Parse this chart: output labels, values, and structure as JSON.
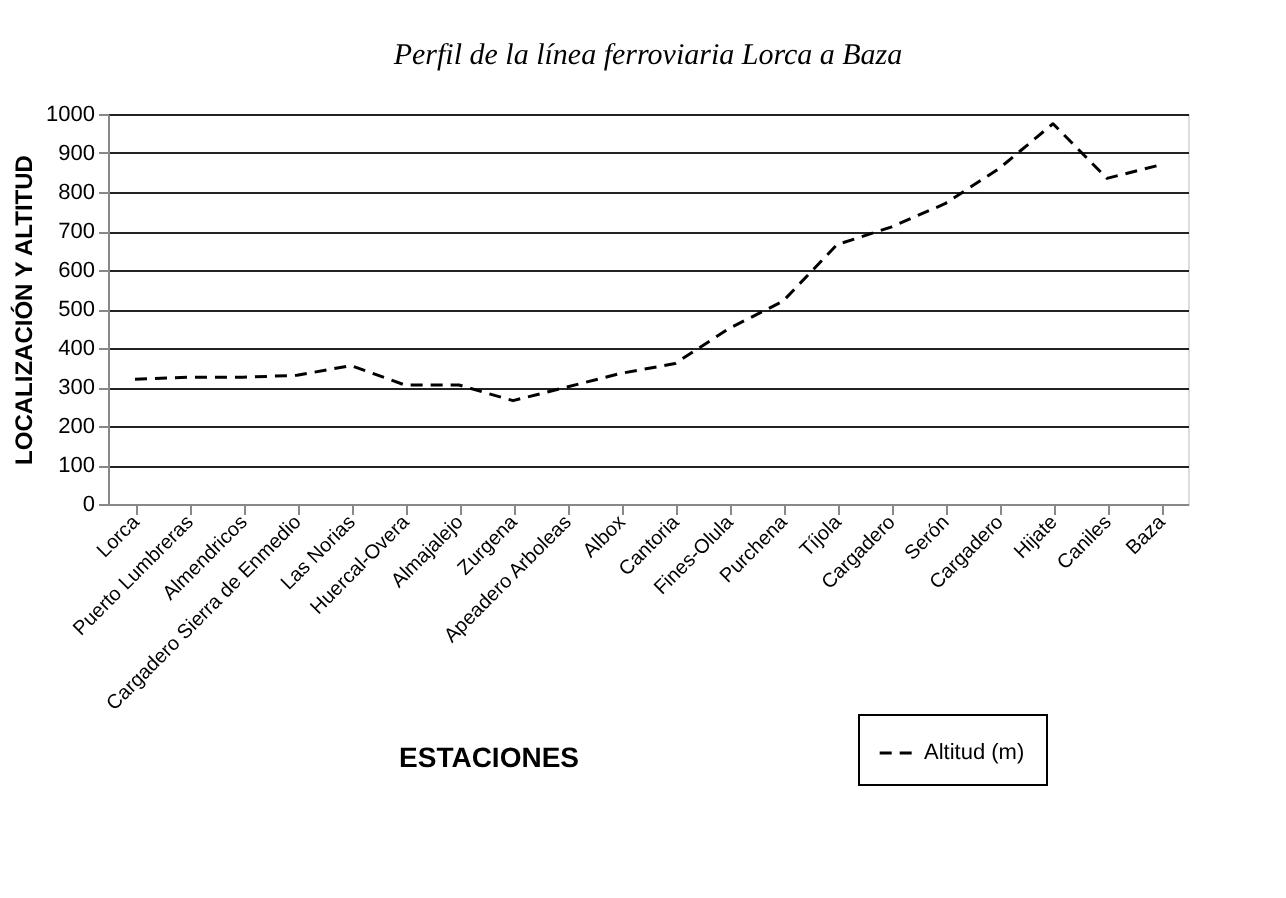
{
  "chart_data": {
    "type": "line",
    "title": "Perfil de la línea ferroviaria Lorca a Baza",
    "xlabel": "ESTACIONES",
    "ylabel": "LOCALIZACIÓN Y ALTITUD",
    "categories": [
      "Lorca",
      "Puerto Lumbreras",
      "Almendricos",
      "Cargadero Sierra de Enmedio",
      "Las Norias",
      "Huercal-Overa",
      "Almajalejo",
      "Zurgena",
      "Apeadero Arboleas",
      "Albox",
      "Cantoria",
      "Fines-Olula",
      "Purchena",
      "Tíjola",
      "Cargadero",
      "Serón",
      "Cargadero",
      "Hijate",
      "Caniles",
      "Baza"
    ],
    "series": [
      {
        "name": "Altitud (m)",
        "color": "#000000",
        "values": [
          320,
          325,
          325,
          330,
          355,
          305,
          305,
          265,
          300,
          335,
          360,
          450,
          520,
          665,
          710,
          770,
          860,
          975,
          835,
          870
        ]
      }
    ],
    "ylim": [
      0,
      1000
    ],
    "yticks": [
      0,
      100,
      200,
      300,
      400,
      500,
      600,
      700,
      800,
      900,
      1000
    ],
    "grid": "y",
    "legend": "bottom right",
    "line_style": "dashed",
    "marker": "none"
  }
}
